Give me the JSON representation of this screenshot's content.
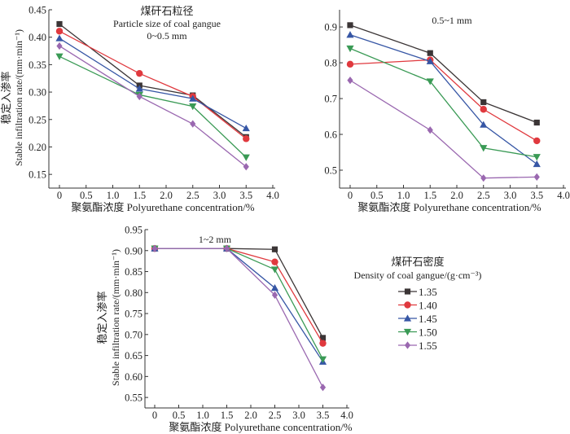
{
  "colors": {
    "1.35": "#3b3536",
    "1.40": "#e0393e",
    "1.45": "#3656a5",
    "1.50": "#3a9a55",
    "1.55": "#9a68b0",
    "axis": "#333333"
  },
  "legend": {
    "title_cn": "煤矸石密度",
    "title_en": "Density of coal gangue/(g·cm⁻³)",
    "entries": [
      "1.35",
      "1.40",
      "1.45",
      "1.50",
      "1.55"
    ],
    "markers": [
      "square",
      "circle",
      "triangle-up",
      "triangle-down",
      "diamond"
    ]
  },
  "chart_data": [
    {
      "type": "line",
      "title_cn": "煤矸石粒径",
      "title_en": "Particle size of coal gangue",
      "title": "0~0.5 mm",
      "xlabel": "聚氨酯浓度 Polyurethane concentration/%",
      "ylabel_cn": "稳定入渗率",
      "ylabel": "Stable infiltration rate/(mm·min⁻¹)",
      "x": [
        0,
        1.5,
        2.5,
        3.5
      ],
      "xticks": [
        "0",
        "0.5",
        "1.0",
        "1.5",
        "2.0",
        "2.5",
        "3.0",
        "3.5",
        "4.0"
      ],
      "yticks": [
        "0.15",
        "0.20",
        "0.25",
        "0.30",
        "0.35",
        "0.40",
        "0.45"
      ],
      "ylim": [
        0.125,
        0.45
      ],
      "series": [
        {
          "name": "1.35",
          "values": [
            0.424,
            0.312,
            0.294,
            0.218
          ]
        },
        {
          "name": "1.40",
          "values": [
            0.411,
            0.334,
            0.292,
            0.215
          ]
        },
        {
          "name": "1.45",
          "values": [
            0.398,
            0.306,
            0.288,
            0.234
          ]
        },
        {
          "name": "1.50",
          "values": [
            0.365,
            0.295,
            0.274,
            0.181
          ]
        },
        {
          "name": "1.55",
          "values": [
            0.384,
            0.292,
            0.242,
            0.164
          ]
        }
      ]
    },
    {
      "type": "line",
      "title": "0.5~1 mm",
      "xlabel": "聚氨酯浓度 Polyurethane concentration/%",
      "x": [
        0,
        1.5,
        2.5,
        3.5
      ],
      "xticks": [
        "0",
        "0.5",
        "1.0",
        "1.5",
        "2.0",
        "2.5",
        "3.0",
        "3.5",
        "4.0"
      ],
      "yticks": [
        "0.5",
        "0.6",
        "0.7",
        "0.8",
        "0.9"
      ],
      "ylim": [
        0.45,
        0.948
      ],
      "series": [
        {
          "name": "1.35",
          "values": [
            0.905,
            0.827,
            0.69,
            0.633
          ]
        },
        {
          "name": "1.40",
          "values": [
            0.796,
            0.808,
            0.67,
            0.582
          ]
        },
        {
          "name": "1.45",
          "values": [
            0.878,
            0.804,
            0.627,
            0.517
          ]
        },
        {
          "name": "1.50",
          "values": [
            0.84,
            0.748,
            0.562,
            0.537
          ]
        },
        {
          "name": "1.55",
          "values": [
            0.751,
            0.612,
            0.478,
            0.481
          ]
        }
      ]
    },
    {
      "type": "line",
      "title": "1~2 mm",
      "xlabel": "聚氨酯浓度 Polyurethane concentration/%",
      "ylabel_cn": "稳定入渗率",
      "ylabel": "Stable infiltration rate/(mm·min⁻¹)",
      "x": [
        0,
        1.5,
        2.5,
        3.5
      ],
      "xticks": [
        "0",
        "0.5",
        "1.0",
        "1.5",
        "2.0",
        "2.5",
        "3.0",
        "3.5",
        "4.0"
      ],
      "yticks": [
        "0.55",
        "0.60",
        "0.65",
        "0.70",
        "0.75",
        "0.80",
        "0.85",
        "0.90",
        "0.95"
      ],
      "ylim": [
        0.525,
        0.95
      ],
      "series": [
        {
          "name": "1.35",
          "values": [
            0.905,
            0.905,
            0.903,
            0.692
          ]
        },
        {
          "name": "1.40",
          "values": [
            0.905,
            0.905,
            0.873,
            0.679
          ]
        },
        {
          "name": "1.45",
          "values": [
            0.905,
            0.905,
            0.811,
            0.635
          ]
        },
        {
          "name": "1.50",
          "values": [
            0.905,
            0.905,
            0.855,
            0.641
          ]
        },
        {
          "name": "1.55",
          "values": [
            0.905,
            0.905,
            0.794,
            0.574
          ]
        }
      ]
    }
  ]
}
